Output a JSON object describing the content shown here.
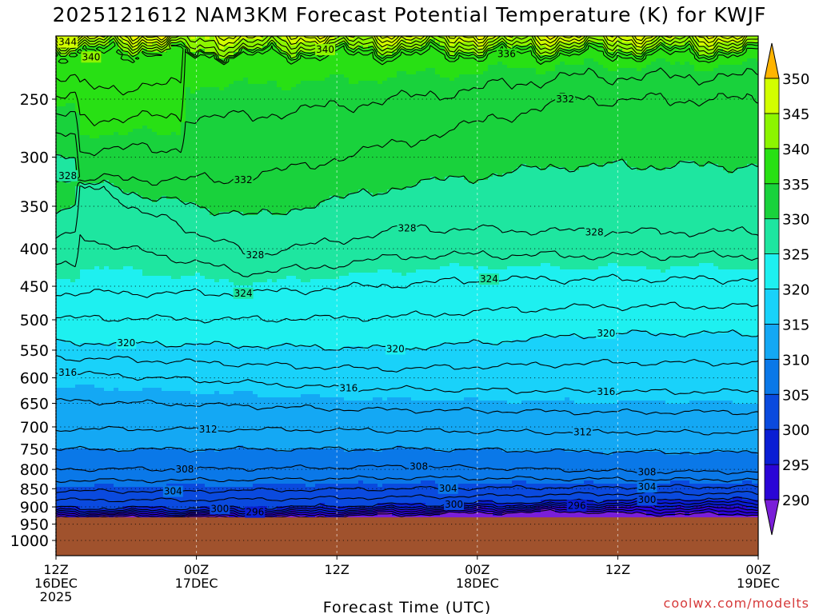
{
  "chart_data": {
    "type": "contour",
    "title": "2025121612 NAM3KM Forecast Potential Temperature (K) for KWJF",
    "xlabel": "Forecast Time (UTC)",
    "ylabel": "",
    "x_ticks": [
      {
        "hour": 0,
        "line1": "12Z",
        "line2": "16DEC",
        "line3": "2025"
      },
      {
        "hour": 12,
        "line1": "00Z",
        "line2": "17DEC",
        "line3": ""
      },
      {
        "hour": 24,
        "line1": "12Z",
        "line2": "",
        "line3": ""
      },
      {
        "hour": 36,
        "line1": "00Z",
        "line2": "18DEC",
        "line3": ""
      },
      {
        "hour": 48,
        "line1": "12Z",
        "line2": "",
        "line3": ""
      },
      {
        "hour": 60,
        "line1": "00Z",
        "line2": "19DEC",
        "line3": ""
      }
    ],
    "xlim": [
      0,
      60
    ],
    "y_ticks": [
      250,
      300,
      350,
      400,
      450,
      500,
      550,
      600,
      650,
      700,
      750,
      800,
      850,
      900,
      950,
      1000
    ],
    "ylim": [
      1050,
      200
    ],
    "y_scale": "log-pressure",
    "surface_pressure": 930,
    "contour_interval": 2,
    "colorbar": {
      "ticks": [
        290,
        295,
        300,
        305,
        310,
        315,
        320,
        325,
        330,
        335,
        340,
        345,
        350
      ],
      "colors": [
        "#7a1ed8",
        "#2a05d6",
        "#0a1ed4",
        "#0a4ade",
        "#0a78e8",
        "#14a8f4",
        "#19d2fa",
        "#1ef0f0",
        "#1ee6a0",
        "#19d23c",
        "#28e014",
        "#8cf500",
        "#d2ff00",
        "#ffff00",
        "#ffb400"
      ]
    },
    "contour_labels": [
      {
        "value": 344,
        "hour": 1.0,
        "p": 209
      },
      {
        "value": 340,
        "hour": 3.0,
        "p": 219
      },
      {
        "value": 340,
        "hour": 23.0,
        "p": 214
      },
      {
        "value": 336,
        "hour": 38.5,
        "p": 217
      },
      {
        "value": 332,
        "hour": 43.5,
        "p": 250
      },
      {
        "value": 332,
        "hour": 16.0,
        "p": 322
      },
      {
        "value": 328,
        "hour": 1.0,
        "p": 318
      },
      {
        "value": 328,
        "hour": 30.0,
        "p": 375
      },
      {
        "value": 328,
        "hour": 46.0,
        "p": 380
      },
      {
        "value": 328,
        "hour": 17.0,
        "p": 408
      },
      {
        "value": 324,
        "hour": 16.0,
        "p": 460
      },
      {
        "value": 324,
        "hour": 37.0,
        "p": 440
      },
      {
        "value": 320,
        "hour": 6.0,
        "p": 538
      },
      {
        "value": 320,
        "hour": 29.0,
        "p": 548
      },
      {
        "value": 320,
        "hour": 47.0,
        "p": 522
      },
      {
        "value": 316,
        "hour": 1.0,
        "p": 590
      },
      {
        "value": 316,
        "hour": 25.0,
        "p": 620
      },
      {
        "value": 316,
        "hour": 47.0,
        "p": 627
      },
      {
        "value": 312,
        "hour": 13.0,
        "p": 705
      },
      {
        "value": 312,
        "hour": 45.0,
        "p": 712
      },
      {
        "value": 308,
        "hour": 11.0,
        "p": 800
      },
      {
        "value": 308,
        "hour": 31.0,
        "p": 793
      },
      {
        "value": 308,
        "hour": 50.5,
        "p": 807
      },
      {
        "value": 304,
        "hour": 10.0,
        "p": 857
      },
      {
        "value": 304,
        "hour": 33.5,
        "p": 849
      },
      {
        "value": 304,
        "hour": 50.5,
        "p": 845
      },
      {
        "value": 300,
        "hour": 14.0,
        "p": 905
      },
      {
        "value": 300,
        "hour": 34.0,
        "p": 893
      },
      {
        "value": 300,
        "hour": 50.5,
        "p": 880
      },
      {
        "value": 296,
        "hour": 17.0,
        "p": 915
      },
      {
        "value": 296,
        "hour": 44.5,
        "p": 896
      }
    ]
  },
  "credit": "coolwx.com/modelts"
}
